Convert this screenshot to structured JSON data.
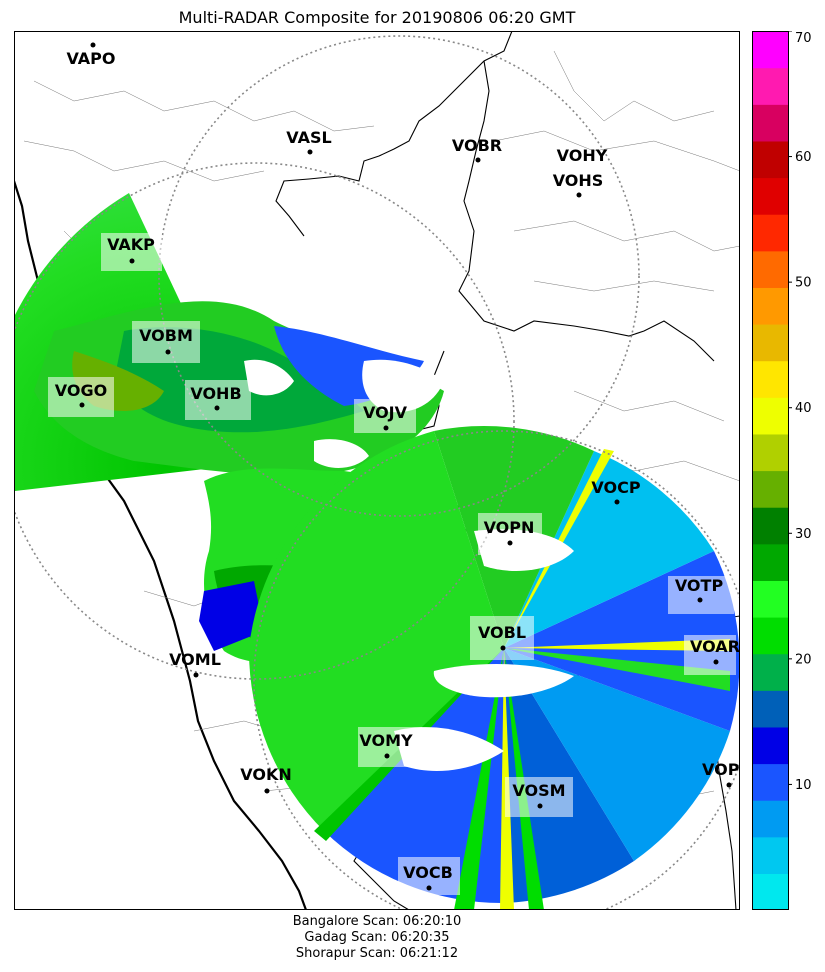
{
  "title": "Multi-RADAR Composite for 20190806 06:20 GMT",
  "footer": {
    "lines": [
      "Bangalore Scan: 06:20:10",
      "Gadag Scan: 06:20:35",
      "Shorapur Scan: 06:21:12"
    ]
  },
  "colorbar": {
    "min": 0,
    "max": 70,
    "ticks": [
      "10",
      "20",
      "30",
      "40",
      "50",
      "60",
      "70"
    ],
    "colors": [
      "#00e8ee",
      "#00c8f0",
      "#009bf2",
      "#1a55ff",
      "#0000e6",
      "#0060b8",
      "#00b04a",
      "#00dd00",
      "#22ff22",
      "#00a800",
      "#008000",
      "#66b000",
      "#b0d000",
      "#eeff00",
      "#ffe600",
      "#e8b800",
      "#ff9900",
      "#ff6a00",
      "#ff2800",
      "#e00000",
      "#c00000",
      "#d80060",
      "#ff1ab0",
      "#ff00ff"
    ]
  },
  "stations": [
    {
      "name": "VAPO",
      "highlight": false
    },
    {
      "name": "VASL",
      "highlight": false
    },
    {
      "name": "VOBR",
      "highlight": false
    },
    {
      "name": "VOHY",
      "highlight": false
    },
    {
      "name": "VOHS",
      "highlight": false
    },
    {
      "name": "VAKP",
      "highlight": true
    },
    {
      "name": "VOBM",
      "highlight": true
    },
    {
      "name": "VOGO",
      "highlight": true
    },
    {
      "name": "VOHB",
      "highlight": true
    },
    {
      "name": "VOJV",
      "highlight": true
    },
    {
      "name": "VOCP",
      "highlight": false
    },
    {
      "name": "VOPN",
      "highlight": true
    },
    {
      "name": "VOTP",
      "highlight": true
    },
    {
      "name": "VOBL",
      "highlight": true
    },
    {
      "name": "VOAR",
      "highlight": true
    },
    {
      "name": "VOML",
      "highlight": false
    },
    {
      "name": "VOMY",
      "highlight": true
    },
    {
      "name": "VOKN",
      "highlight": false
    },
    {
      "name": "VOSM",
      "highlight": true
    },
    {
      "name": "VOPC",
      "highlight": false
    },
    {
      "name": "VOCB",
      "highlight": true
    }
  ],
  "radars": [
    {
      "name": "Gadag"
    },
    {
      "name": "Shorapur"
    },
    {
      "name": "Bangalore"
    }
  ]
}
